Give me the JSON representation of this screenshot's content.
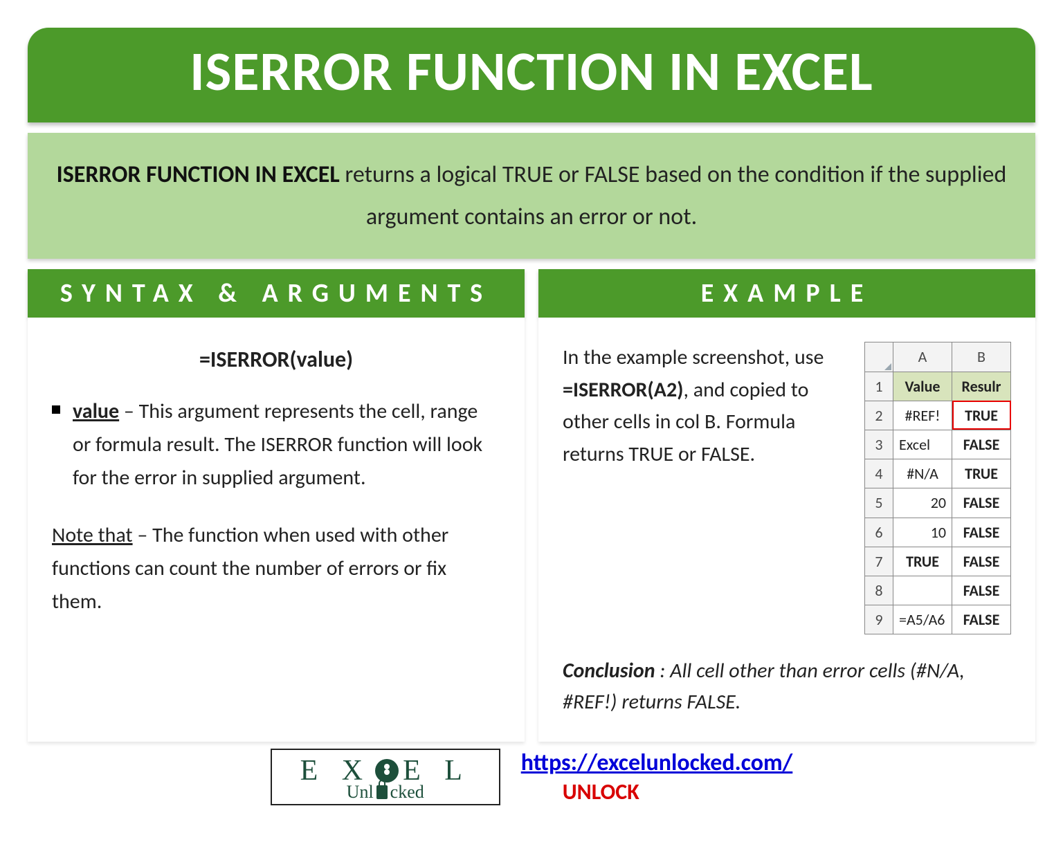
{
  "title": "ISERROR FUNCTION IN EXCEL",
  "description": {
    "lead": "ISERROR FUNCTION IN EXCEL",
    "rest": " returns a logical TRUE or FALSE based on the condition if the supplied argument contains an error or not."
  },
  "left": {
    "header": "SYNTAX & ARGUMENTS",
    "formula": "=ISERROR(value)",
    "arg_name": "value",
    "arg_desc": " – This argument represents the cell, range or formula result. The ISERROR function will look for the error in supplied argument.",
    "note_label": "Note that",
    "note_rest": " – The function when used with other functions can count the number of errors or fix them."
  },
  "right": {
    "header": "EXAMPLE",
    "intro_1": "In the example screenshot, use ",
    "formula_ref": "=ISERROR(A2)",
    "intro_2": ", and copied to other cells in col B. Formula returns TRUE or FALSE.",
    "conc_label": "Conclusion",
    "conc_rest": " : All cell other than error cells (#N/A, #REF!) returns FALSE."
  },
  "table": {
    "col_a": "A",
    "col_b": "B",
    "header_a": "Value",
    "header_b": "Resulr",
    "rows": [
      {
        "n": "1"
      },
      {
        "n": "2",
        "a": "#REF!",
        "b": "TRUE"
      },
      {
        "n": "3",
        "a": "Excel",
        "b": "FALSE"
      },
      {
        "n": "4",
        "a": "#N/A",
        "b": "TRUE"
      },
      {
        "n": "5",
        "a": "20",
        "b": "FALSE"
      },
      {
        "n": "6",
        "a": "10",
        "b": "FALSE"
      },
      {
        "n": "7",
        "a": "TRUE",
        "b": "FALSE"
      },
      {
        "n": "8",
        "a": "",
        "b": "FALSE"
      },
      {
        "n": "9",
        "a": "=A5/A6",
        "b": "FALSE"
      }
    ]
  },
  "footer": {
    "logo_top": "E X",
    "logo_top2": "E L",
    "logo_bottom_1": "Unl",
    "logo_bottom_2": "cked",
    "url": "https://excelunlocked.com/",
    "unlock": "UNLOCK"
  },
  "colors": {
    "green_dark": "#4c9a2a",
    "green_light": "#b3d89b",
    "red": "#d80000",
    "blue": "#0000d8"
  }
}
